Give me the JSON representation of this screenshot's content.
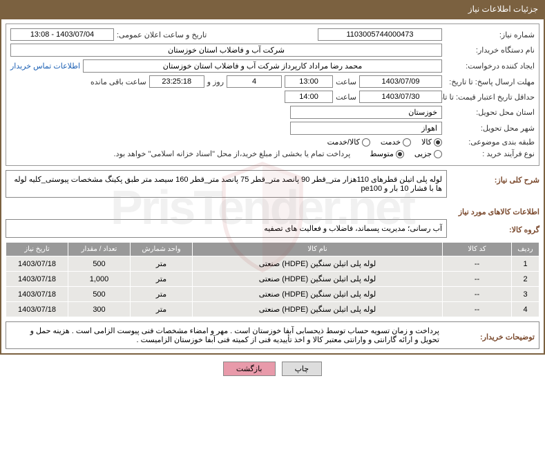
{
  "header": {
    "title": "جزئیات اطلاعات نیاز"
  },
  "fields": {
    "need_number_label": "شماره نیاز:",
    "need_number": "1103005744000473",
    "announce_datetime_label": "تاریخ و ساعت اعلان عمومی:",
    "announce_datetime": "1403/07/04 - 13:08",
    "buyer_org_label": "نام دستگاه خریدار:",
    "buyer_org": "شرکت آب و فاضلاب استان خوزستان",
    "requester_label": "ایجاد کننده درخواست:",
    "requester": "محمد رضا مراداد کارپرداز شرکت آب و فاضلاب استان خوزستان",
    "contact_link": "اطلاعات تماس خریدار",
    "deadline_label": "مهلت ارسال پاسخ: تا تاریخ:",
    "deadline_date": "1403/07/09",
    "time_label1": "ساعت",
    "deadline_time": "13:00",
    "days_remaining": "4",
    "days_label": "روز و",
    "time_remaining": "23:25:18",
    "remaining_label": "ساعت باقی مانده",
    "validity_label": "حداقل تاریخ اعتبار قیمت: تا تاریخ:",
    "validity_date": "1403/07/30",
    "time_label2": "ساعت",
    "validity_time": "14:00",
    "province_label": "استان محل تحویل:",
    "province": "خوزستان",
    "city_label": "شهر محل تحویل:",
    "city": "اهواز",
    "category_label": "طبقه بندی موضوعی:",
    "process_label": "نوع فرآیند خرید :",
    "payment_note": "پرداخت تمام یا بخشی از مبلغ خرید،از محل \"اسناد خزانه اسلامی\" خواهد بود."
  },
  "radios": {
    "category": {
      "options": [
        "کالا",
        "خدمت",
        "کالا/خدمت"
      ],
      "selected": 0
    },
    "process": {
      "options": [
        "جزیی",
        "متوسط"
      ],
      "selected": 1
    }
  },
  "need_desc": {
    "label": "شرح کلی نیاز:",
    "text": "لوله پلی اتیلن قطرهای 110هزار متر_قطر 90 پانصد متر_قطر 75 پانصد متر_قطر 160 سیصد متر طبق پکینگ مشخصات پیوستی_کلیه لوله ها با فشار 10 بار و pe100"
  },
  "goods_section": {
    "title": "اطلاعات کالاهای مورد نیاز",
    "group_label": "گروه کالا:",
    "group_value": "آب رسانی؛ مدیریت پسماند، فاضلاب و فعالیت های تصفیه"
  },
  "table": {
    "headers": [
      "ردیف",
      "کد کالا",
      "نام کالا",
      "واحد شمارش",
      "تعداد / مقدار",
      "تاریخ نیاز"
    ],
    "rows": [
      [
        "1",
        "--",
        "لوله پلی اتیلن سنگین (HDPE) صنعتی",
        "متر",
        "500",
        "1403/07/18"
      ],
      [
        "2",
        "--",
        "لوله پلی اتیلن سنگین (HDPE) صنعتی",
        "متر",
        "1,000",
        "1403/07/18"
      ],
      [
        "3",
        "--",
        "لوله پلی اتیلن سنگین (HDPE) صنعتی",
        "متر",
        "500",
        "1403/07/18"
      ],
      [
        "4",
        "--",
        "لوله پلی اتیلن سنگین (HDPE) صنعتی",
        "متر",
        "300",
        "1403/07/18"
      ]
    ],
    "col_widths": [
      "40px",
      "100px",
      "auto",
      "90px",
      "90px",
      "90px"
    ]
  },
  "buyer_notes": {
    "label": "توضیحات خریدار:",
    "text": "پرداخت و زمان تسویه حساب توسط ذیحسابی آبفا خوزستان است . مهر و امضاء مشخصات فنی پیوست الزامی است . هزینه حمل و تحویل و ارائه گارانتی و وارانتی معتبر کالا و اخذ تأییدیه فنی از کمیته فنی آبفا خوزستان الزامیست ."
  },
  "buttons": {
    "print": "چاپ",
    "back": "بازگشت"
  },
  "colors": {
    "header_bg": "#7b6140",
    "row_bg": "#e8e7e4",
    "th_bg": "#999999",
    "back_btn": "#e89aaa"
  }
}
